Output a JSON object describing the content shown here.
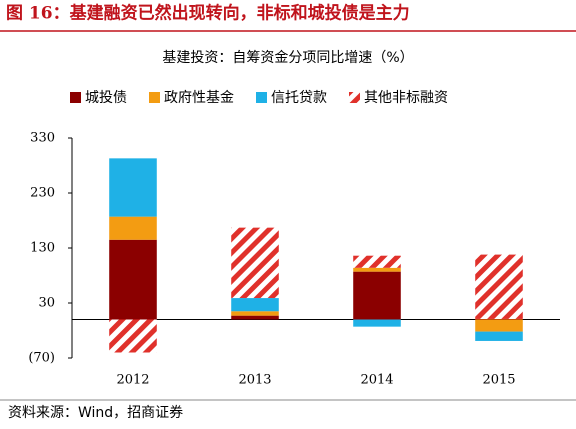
{
  "header": "图 16：基建融资已然出现转向，非标和城投债是主力",
  "source": "资料来源：Wind，招商证券",
  "chart_data": {
    "type": "stacked-bar",
    "title": "基建投资：自筹资金分项同比增速（%）",
    "categories": [
      "2012",
      "2013",
      "2014",
      "2015"
    ],
    "series": [
      {
        "name": "城投债",
        "color": "#8b0000",
        "values": [
          145,
          7,
          87,
          1
        ]
      },
      {
        "name": "政府性基金",
        "color": "#f39c12",
        "values": [
          42,
          8,
          7,
          -22
        ]
      },
      {
        "name": "信托贷款",
        "color": "#1fb1e6",
        "values": [
          106,
          24,
          -13,
          -17
        ]
      },
      {
        "name": "其他非标融资",
        "color": "#e0312b",
        "hatch": true,
        "values": [
          -60,
          128,
          22,
          117
        ]
      }
    ],
    "ylim": [
      -70,
      330
    ],
    "yticks": [
      {
        "value": -70,
        "label": "(70)"
      },
      30,
      130,
      230,
      330
    ],
    "grid": false
  }
}
